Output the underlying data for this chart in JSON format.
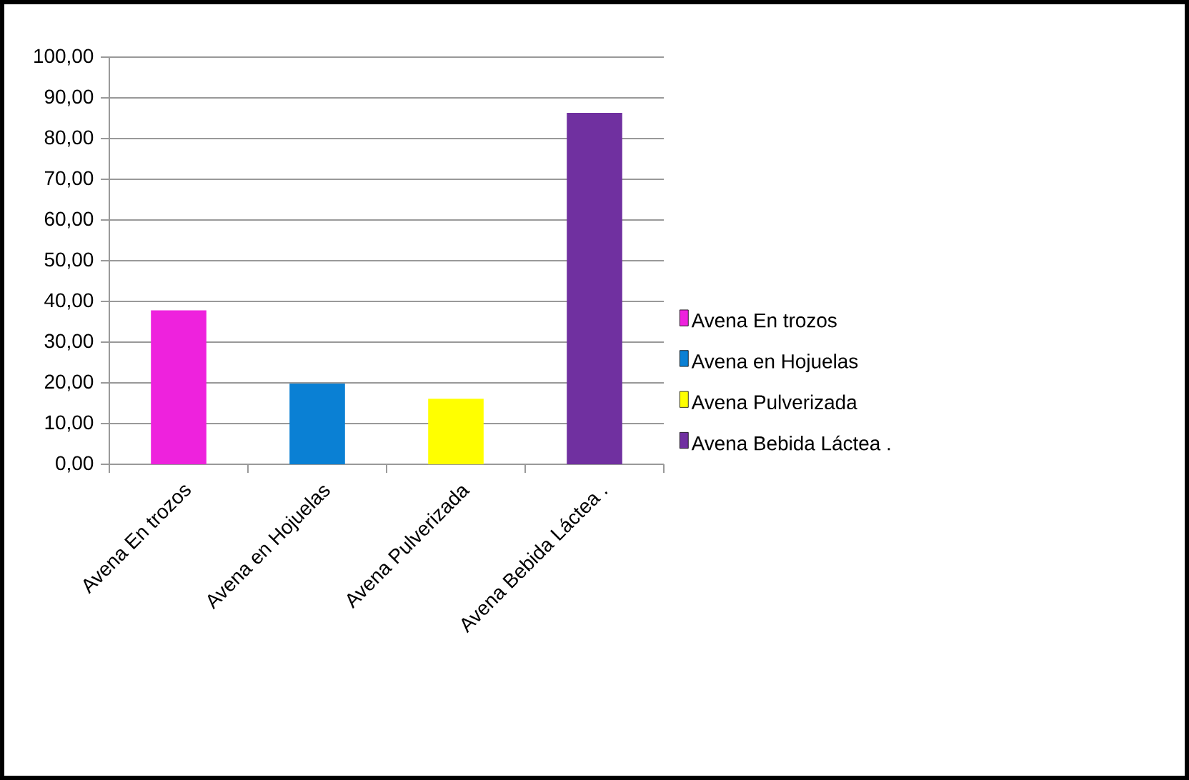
{
  "chart_data": {
    "type": "bar",
    "categories": [
      "Avena En trozos",
      "Avena en Hojuelas",
      "Avena Pulverizada",
      "Avena Bebida Láctea ."
    ],
    "series": [
      {
        "name": "Avena En trozos",
        "color": "#ee22dd",
        "values": [
          37.8,
          null,
          null,
          null
        ]
      },
      {
        "name": "Avena en Hojuelas",
        "color": "#0a80d4",
        "values": [
          null,
          19.8,
          null,
          null
        ]
      },
      {
        "name": "Avena Pulverizada",
        "color": "#ffff00",
        "values": [
          null,
          null,
          16.1,
          null
        ]
      },
      {
        "name": "Avena Bebida Láctea .",
        "color": "#7030a0",
        "values": [
          null,
          null,
          null,
          86.3
        ]
      }
    ],
    "stacked": true,
    "ylim": [
      0,
      100
    ],
    "yticks": [
      {
        "value": 0,
        "label": "0,00"
      },
      {
        "value": 10,
        "label": "10,00"
      },
      {
        "value": 20,
        "label": "20,00"
      },
      {
        "value": 30,
        "label": "30,00"
      },
      {
        "value": 40,
        "label": "40,00"
      },
      {
        "value": 50,
        "label": "50,00"
      },
      {
        "value": 60,
        "label": "60,00"
      },
      {
        "value": 70,
        "label": "70,00"
      },
      {
        "value": 80,
        "label": "80,00"
      },
      {
        "value": 90,
        "label": "90,00"
      },
      {
        "value": 100,
        "label": "100,00"
      }
    ],
    "grid": "y",
    "legend": "right"
  }
}
